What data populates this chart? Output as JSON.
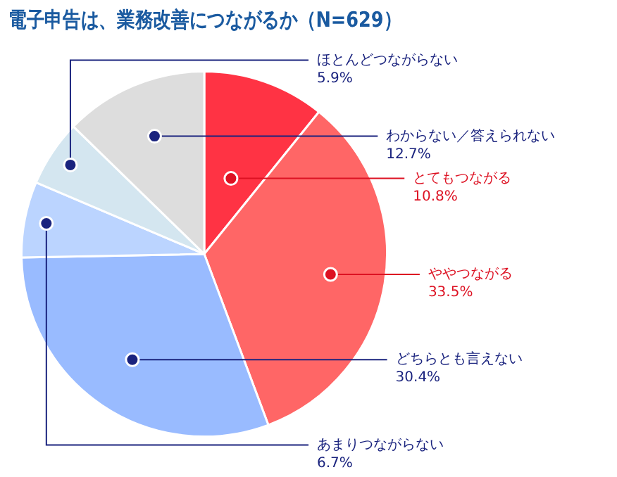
{
  "chart_data": {
    "type": "pie",
    "title": "電子申告は、業務改善につながるか（N=629）",
    "categories": [
      "とてもつながる",
      "ややつながる",
      "どちらとも言えない",
      "あまりつながらない",
      "ほとんどつながらない",
      "わからない／答えられない"
    ],
    "values": [
      10.8,
      33.5,
      30.4,
      6.7,
      5.9,
      12.7
    ],
    "colors": [
      "#ff3344",
      "#ff6666",
      "#99bbff",
      "#bbd4ff",
      "#d4e6f0",
      "#dddddd"
    ],
    "value_labels": [
      "10.8%",
      "33.5%",
      "30.4%",
      "6.7%",
      "5.9%",
      "12.7%"
    ],
    "legend": false
  }
}
